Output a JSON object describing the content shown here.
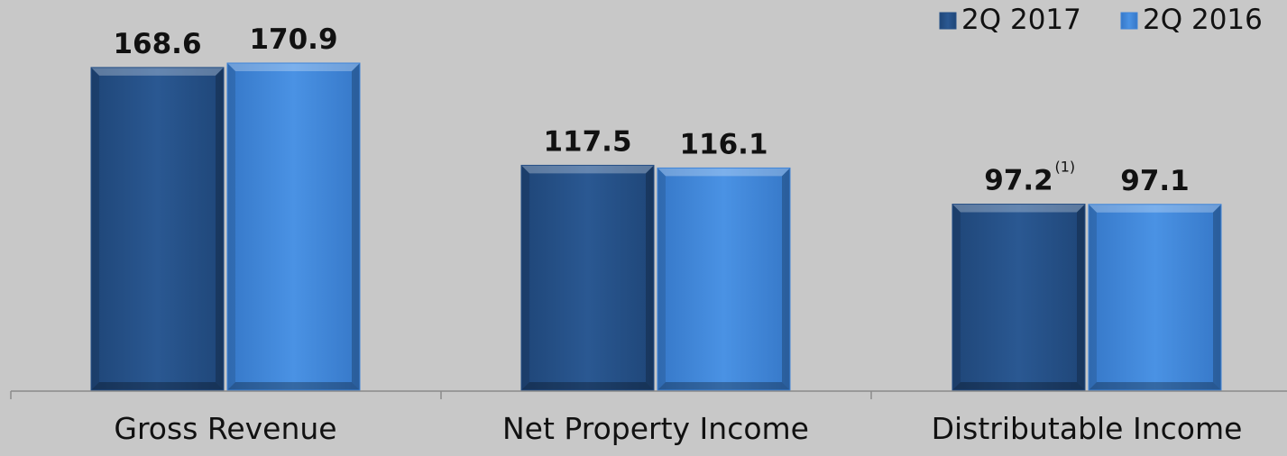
{
  "chart_data": {
    "type": "bar",
    "categories": [
      "Gross Revenue",
      "Net Property Income",
      "Distributable Income"
    ],
    "series": [
      {
        "name": "2Q 2017",
        "values": [
          168.6,
          117.5,
          97.2
        ],
        "labels": [
          "168.6",
          "117.5",
          "97.2"
        ],
        "color": "#254f86"
      },
      {
        "name": "2Q 2016",
        "values": [
          170.9,
          116.1,
          97.1
        ],
        "labels": [
          "170.9",
          "116.1",
          "97.1"
        ],
        "color": "#3f85d8"
      }
    ],
    "annotations": [
      {
        "series": 0,
        "category": 2,
        "text": "(1)"
      }
    ],
    "ylim": [
      0,
      200
    ],
    "legend": "top-right",
    "grid": false,
    "xlabel": "",
    "ylabel": ""
  }
}
